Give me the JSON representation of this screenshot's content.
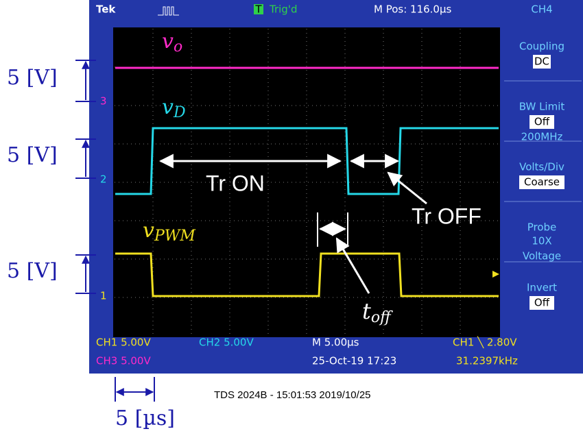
{
  "header": {
    "brand": "Tek",
    "trigger_letter": "T",
    "trigger": "Trig'd",
    "position": "M Pos: 116.0µs",
    "channel": "CH4"
  },
  "menu": [
    {
      "label": "Coupling",
      "value": "DC"
    },
    {
      "label": "BW Limit",
      "value": "Off",
      "note": "200MHz"
    },
    {
      "label": "Volts/Div",
      "value": "Coarse"
    },
    {
      "label": "Probe",
      "lines": [
        "10X",
        "Voltage"
      ]
    },
    {
      "label": "Invert",
      "value": "Off"
    }
  ],
  "markers": [
    "3",
    "2",
    "1"
  ],
  "status": {
    "ch1": "CH1  5.00V",
    "ch2": "CH2  5.00V",
    "timebase": "M 5.00µs",
    "trigger": "CH1 ╲ 2.80V",
    "ch3": "CH3  5.00V",
    "date": "25-Oct-19 17:23",
    "frequency": "31.2397kHz"
  },
  "footer": "TDS 2024B - 15:01:53   2019/10/25",
  "annotations": {
    "signals": [
      {
        "base": "v",
        "sub": "o"
      },
      {
        "base": "v",
        "sub": "D"
      },
      {
        "base": "v",
        "sub": "PWM"
      }
    ],
    "toff": {
      "base": "t",
      "sub": "off"
    },
    "tr_on": "Tr ON",
    "tr_off": "Tr OFF",
    "scale_labels": [
      "5 [V]",
      "5 [V]",
      "5 [V]"
    ],
    "time_scale": "5 [µs]"
  }
}
